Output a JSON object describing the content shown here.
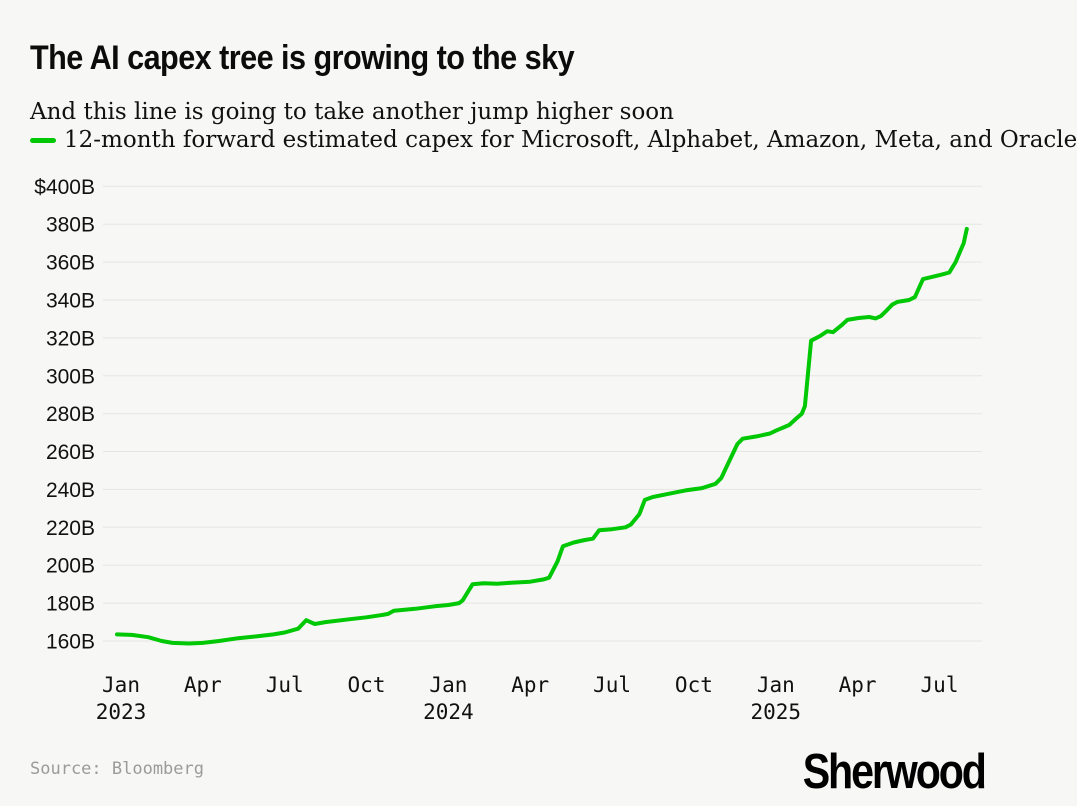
{
  "header": {
    "title": "The AI capex tree is growing to the sky",
    "subtitle": "And this line is going to take another jump higher soon"
  },
  "legend": {
    "label": "12-month forward estimated capex for Microsoft, Alphabet, Amazon, Meta, and Oracle",
    "line_color": "#00c805"
  },
  "footer": {
    "source": "Source: Bloomberg",
    "brand": "Sherwood"
  },
  "chart_data": {
    "type": "line",
    "title": "The AI capex tree is growing to the sky",
    "subtitle": "And this line is going to take another jump higher soon",
    "unit": "USD billions",
    "grid": true,
    "legend_position": "top-left",
    "y_axis": {
      "min": 160,
      "max": 400,
      "step": 20,
      "top_tick_label": "$400B",
      "tick_suffix": "B"
    },
    "x_axis": {
      "start": "2023-01",
      "end": "2025-08",
      "ticks": [
        {
          "m": "2023-01",
          "label": "Jan",
          "year": "2023"
        },
        {
          "m": "2023-04",
          "label": "Apr"
        },
        {
          "m": "2023-07",
          "label": "Jul"
        },
        {
          "m": "2023-10",
          "label": "Oct"
        },
        {
          "m": "2024-01",
          "label": "Jan",
          "year": "2024"
        },
        {
          "m": "2024-04",
          "label": "Apr"
        },
        {
          "m": "2024-07",
          "label": "Jul"
        },
        {
          "m": "2024-10",
          "label": "Oct"
        },
        {
          "m": "2025-01",
          "label": "Jan",
          "year": "2025"
        },
        {
          "m": "2025-04",
          "label": "Apr"
        },
        {
          "m": "2025-07",
          "label": "Jul"
        }
      ]
    },
    "series": [
      {
        "name": "12-month forward estimated capex for Microsoft, Alphabet, Amazon, Meta, and Oracle",
        "color": "#00c805",
        "points": [
          [
            "2022-12-27",
            163.5
          ],
          [
            "2023-01-13",
            163.2
          ],
          [
            "2023-02-01",
            162
          ],
          [
            "2023-02-16",
            160
          ],
          [
            "2023-02-28",
            159
          ],
          [
            "2023-03-16",
            158.7
          ],
          [
            "2023-04-01",
            159
          ],
          [
            "2023-04-19",
            160
          ],
          [
            "2023-05-10",
            161.5
          ],
          [
            "2023-06-01",
            162.5
          ],
          [
            "2023-06-19",
            163.5
          ],
          [
            "2023-07-01",
            164.5
          ],
          [
            "2023-07-16",
            166.5
          ],
          [
            "2023-07-25",
            171
          ],
          [
            "2023-08-04",
            169
          ],
          [
            "2023-08-16",
            170
          ],
          [
            "2023-09-13",
            171.5
          ],
          [
            "2023-10-01",
            172.5
          ],
          [
            "2023-10-19",
            173.8
          ],
          [
            "2023-10-25",
            174.3
          ],
          [
            "2023-11-01",
            176
          ],
          [
            "2023-11-25",
            177
          ],
          [
            "2023-12-16",
            178.3
          ],
          [
            "2024-01-01",
            179
          ],
          [
            "2024-01-13",
            180
          ],
          [
            "2024-01-17",
            181.5
          ],
          [
            "2024-01-28",
            190
          ],
          [
            "2024-02-10",
            190.5
          ],
          [
            "2024-02-25",
            190.2
          ],
          [
            "2024-03-10",
            190.8
          ],
          [
            "2024-04-01",
            191.3
          ],
          [
            "2024-04-16",
            192.5
          ],
          [
            "2024-04-22",
            193.4
          ],
          [
            "2024-05-01",
            202
          ],
          [
            "2024-05-07",
            210
          ],
          [
            "2024-05-19",
            212
          ],
          [
            "2024-06-01",
            213.3
          ],
          [
            "2024-06-10",
            214
          ],
          [
            "2024-06-17",
            218.5
          ],
          [
            "2024-07-01",
            219
          ],
          [
            "2024-07-16",
            220
          ],
          [
            "2024-07-22",
            221.5
          ],
          [
            "2024-08-01",
            227
          ],
          [
            "2024-08-07",
            234.5
          ],
          [
            "2024-08-16",
            236
          ],
          [
            "2024-09-01",
            237.5
          ],
          [
            "2024-09-22",
            239.5
          ],
          [
            "2024-10-10",
            240.7
          ],
          [
            "2024-10-25",
            243
          ],
          [
            "2024-11-01",
            246
          ],
          [
            "2024-11-10",
            255
          ],
          [
            "2024-11-19",
            264
          ],
          [
            "2024-11-25",
            266.8
          ],
          [
            "2024-12-10",
            268
          ],
          [
            "2024-12-25",
            269.5
          ],
          [
            "2025-01-01",
            271
          ],
          [
            "2025-01-16",
            274
          ],
          [
            "2025-01-24",
            277.5
          ],
          [
            "2025-01-30",
            280
          ],
          [
            "2025-02-03",
            284
          ],
          [
            "2025-02-10",
            318.5
          ],
          [
            "2025-02-20",
            321
          ],
          [
            "2025-02-28",
            323.5
          ],
          [
            "2025-03-04",
            323
          ],
          [
            "2025-03-13",
            326.5
          ],
          [
            "2025-03-20",
            329.5
          ],
          [
            "2025-04-02",
            330.5
          ],
          [
            "2025-04-14",
            331
          ],
          [
            "2025-04-21",
            330.3
          ],
          [
            "2025-04-27",
            331.5
          ],
          [
            "2025-05-03",
            334.5
          ],
          [
            "2025-05-09",
            337.5
          ],
          [
            "2025-05-15",
            339
          ],
          [
            "2025-05-28",
            340
          ],
          [
            "2025-06-04",
            341.5
          ],
          [
            "2025-06-13",
            351
          ],
          [
            "2025-06-22",
            352
          ],
          [
            "2025-07-04",
            353.5
          ],
          [
            "2025-07-12",
            354.5
          ],
          [
            "2025-07-19",
            360
          ],
          [
            "2025-07-28",
            370
          ],
          [
            "2025-08-01",
            377.5
          ]
        ]
      }
    ],
    "source": "Source: Bloomberg"
  }
}
